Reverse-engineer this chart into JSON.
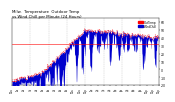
{
  "title": "Milw.   Temperature   Outdoor Temp vs Wind Chill per Minute (24 Hours)",
  "title_fontsize": 3.5,
  "bg_color": "#ffffff",
  "plot_bg_color": "#ffffff",
  "xlabel": "",
  "ylabel": "",
  "n_points": 1440,
  "temp_color": "#ff0000",
  "wind_chill_color": "#0000cc",
  "ylim": [
    -20,
    65
  ],
  "xlim": [
    0,
    1440
  ],
  "grid_color": "#aaaaaa",
  "freeze_line_color": "#ff0000",
  "freeze_y": 32,
  "legend_items": [
    {
      "label": "OutTemp",
      "color": "#ff0000"
    },
    {
      "label": "WindChill",
      "color": "#0000cc"
    }
  ]
}
